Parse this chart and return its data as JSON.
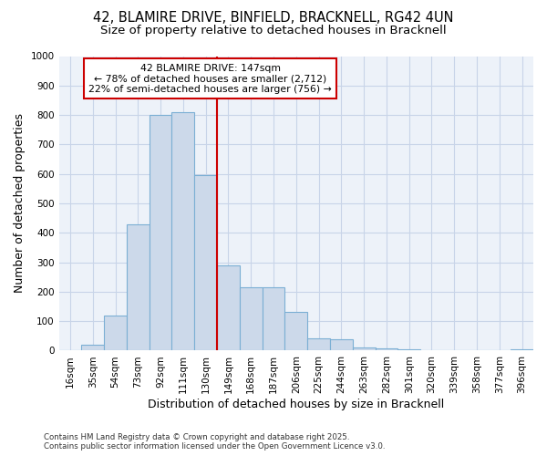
{
  "title": "42, BLAMIRE DRIVE, BINFIELD, BRACKNELL, RG42 4UN",
  "subtitle": "Size of property relative to detached houses in Bracknell",
  "xlabel": "Distribution of detached houses by size in Bracknell",
  "ylabel": "Number of detached properties",
  "bar_labels": [
    "16sqm",
    "35sqm",
    "54sqm",
    "73sqm",
    "92sqm",
    "111sqm",
    "130sqm",
    "149sqm",
    "168sqm",
    "187sqm",
    "206sqm",
    "225sqm",
    "244sqm",
    "263sqm",
    "282sqm",
    "301sqm",
    "320sqm",
    "339sqm",
    "358sqm",
    "377sqm",
    "396sqm"
  ],
  "bar_values": [
    0,
    20,
    120,
    430,
    800,
    810,
    595,
    290,
    215,
    215,
    130,
    42,
    38,
    12,
    8,
    3,
    1,
    0,
    1,
    0,
    5
  ],
  "bar_color": "#ccd9ea",
  "bar_edge_color": "#7bafd4",
  "bar_edge_width": 0.8,
  "vline_index": 7,
  "vline_color": "#cc0000",
  "annotation_title": "42 BLAMIRE DRIVE: 147sqm",
  "annotation_line1": "← 78% of detached houses are smaller (2,712)",
  "annotation_line2": "22% of semi-detached houses are larger (756) →",
  "annotation_box_facecolor": "#ffffff",
  "annotation_border_color": "#cc0000",
  "ylim": [
    0,
    1000
  ],
  "yticks": [
    0,
    100,
    200,
    300,
    400,
    500,
    600,
    700,
    800,
    900,
    1000
  ],
  "grid_color": "#c8d4e8",
  "bg_color": "#edf2f9",
  "footer_line1": "Contains HM Land Registry data © Crown copyright and database right 2025.",
  "footer_line2": "Contains public sector information licensed under the Open Government Licence v3.0.",
  "title_fontsize": 10.5,
  "subtitle_fontsize": 9.5,
  "axis_label_fontsize": 9,
  "tick_fontsize": 7.5,
  "annotation_fontsize": 7.8,
  "footer_fontsize": 6.2
}
